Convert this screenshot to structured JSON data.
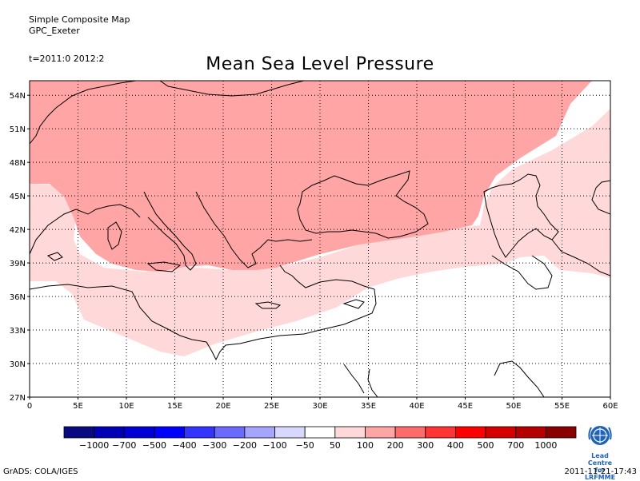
{
  "header": {
    "line1": "Simple Composite Map",
    "line2": "GPC_Exeter",
    "time_range": "t=2011:0 2012:2"
  },
  "title": "Mean Sea Level Pressure",
  "axes": {
    "lat_labels": [
      "54N",
      "51N",
      "48N",
      "45N",
      "42N",
      "39N",
      "36N",
      "33N",
      "30N",
      "27N"
    ],
    "lon_labels": [
      "0",
      "5E",
      "10E",
      "15E",
      "20E",
      "25E",
      "30E",
      "35E",
      "40E",
      "45E",
      "50E",
      "55E",
      "60E"
    ]
  },
  "colorbar": {
    "colors": [
      "#0a0a80",
      "#0000b4",
      "#0000d6",
      "#0000ff",
      "#3434ff",
      "#6a6aff",
      "#a5a5ff",
      "#d8d8ff",
      "#ffffff",
      "#ffd9d9",
      "#ffa5a5",
      "#ff6a6a",
      "#ff3434",
      "#ff0000",
      "#d60000",
      "#b40000",
      "#8a0000"
    ],
    "labels": [
      "-1000",
      "-700",
      "-500",
      "-400",
      "-300",
      "-200",
      "-100",
      "-50",
      "50",
      "100",
      "200",
      "300",
      "400",
      "500",
      "700",
      "1000"
    ]
  },
  "map_fills": {
    "band_100_200": "#ffa5a5",
    "band_50_100": "#ffd9d9"
  },
  "footer": {
    "left": "GrADS: COLA/IGES",
    "right": "2011-11-21-17:43",
    "logo_text_1": "Lead Centre",
    "logo_text_2": "for LRFMME",
    "logo_icon": "wmo-emblem-icon"
  }
}
